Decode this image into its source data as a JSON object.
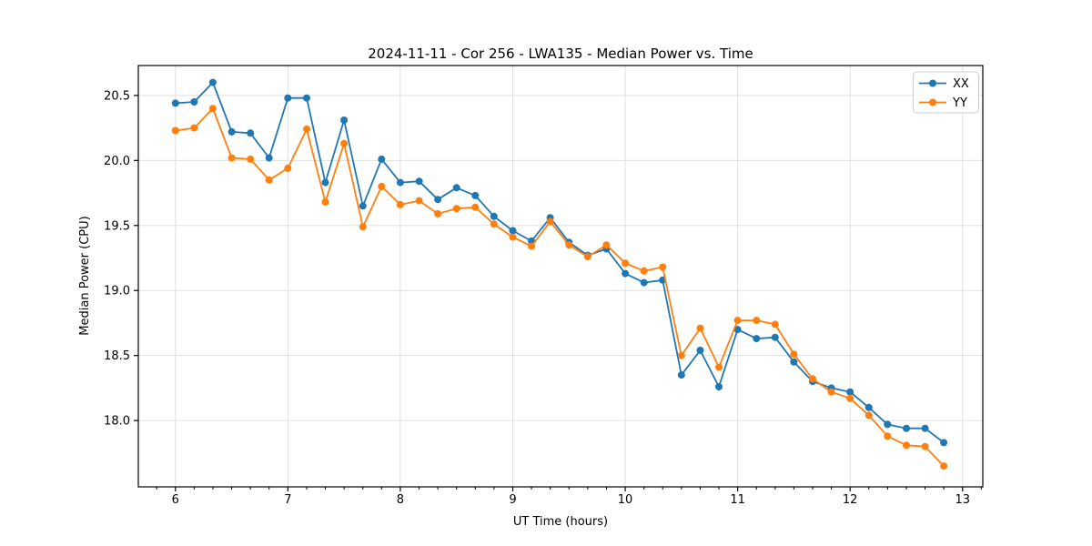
{
  "window": {
    "background": "#ffffff"
  },
  "chart_data": {
    "type": "line",
    "title": "2024-11-11 - Cor 256 - LWA135 - Median Power vs. Time",
    "xlabel": "UT Time (hours)",
    "ylabel": "Median Power (CPU)",
    "xlim": [
      5.67,
      13.18
    ],
    "ylim": [
      17.49,
      20.73
    ],
    "x_ticks": [
      6,
      7,
      8,
      9,
      10,
      11,
      12,
      13
    ],
    "y_ticks": [
      18.0,
      18.5,
      19.0,
      19.5,
      20.0,
      20.5
    ],
    "x_minor_step": 0.166667,
    "grid": true,
    "grid_color": "#e0e0e0",
    "legend_position": "upper right",
    "x": [
      6.0,
      6.167,
      6.333,
      6.5,
      6.667,
      6.833,
      7.0,
      7.167,
      7.333,
      7.5,
      7.667,
      7.833,
      8.0,
      8.167,
      8.333,
      8.5,
      8.667,
      8.833,
      9.0,
      9.167,
      9.333,
      9.5,
      9.667,
      9.833,
      10.0,
      10.167,
      10.333,
      10.5,
      10.667,
      10.833,
      11.0,
      11.167,
      11.333,
      11.5,
      11.667,
      11.833,
      12.0,
      12.167,
      12.333,
      12.5,
      12.667,
      12.833
    ],
    "series": [
      {
        "name": "XX",
        "color": "#1f77b4",
        "values": [
          20.44,
          20.45,
          20.6,
          20.22,
          20.21,
          20.02,
          20.48,
          20.48,
          19.83,
          20.31,
          19.65,
          20.01,
          19.83,
          19.84,
          19.7,
          19.79,
          19.73,
          19.57,
          19.46,
          19.38,
          19.56,
          19.37,
          19.27,
          19.32,
          19.13,
          19.06,
          19.08,
          18.35,
          18.54,
          18.26,
          18.7,
          18.63,
          18.64,
          18.45,
          18.3,
          18.25,
          18.22,
          18.1,
          17.97,
          17.94,
          17.94,
          17.83
        ]
      },
      {
        "name": "YY",
        "color": "#ff7f0e",
        "values": [
          20.23,
          20.25,
          20.4,
          20.02,
          20.01,
          19.85,
          19.94,
          20.24,
          19.68,
          20.13,
          19.49,
          19.8,
          19.66,
          19.69,
          19.59,
          19.63,
          19.64,
          19.51,
          19.41,
          19.34,
          19.53,
          19.35,
          19.26,
          19.35,
          19.21,
          19.15,
          19.18,
          18.5,
          18.71,
          18.41,
          18.77,
          18.77,
          18.74,
          18.51,
          18.32,
          18.22,
          18.17,
          18.04,
          17.88,
          17.81,
          17.8,
          17.65
        ]
      }
    ]
  }
}
